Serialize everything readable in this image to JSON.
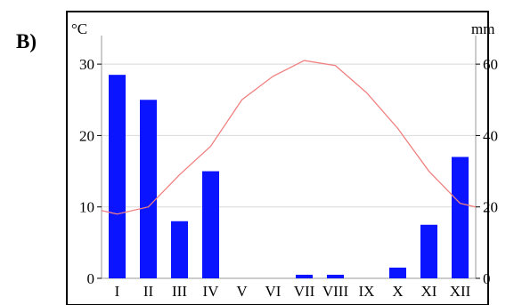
{
  "panel_label": "B)",
  "chart_data": {
    "type": "bar",
    "title": "",
    "left_unit": "°C",
    "right_unit": "mm",
    "categories": [
      "I",
      "II",
      "III",
      "IV",
      "V",
      "VI",
      "VII",
      "VIII",
      "IX",
      "X",
      "XI",
      "XII"
    ],
    "series": [
      {
        "type": "bar",
        "axis": "right",
        "color": "#0a14ff",
        "values": [
          57,
          50,
          16,
          30,
          0,
          0,
          1,
          1,
          0,
          3,
          15,
          34
        ]
      },
      {
        "type": "line",
        "axis": "left",
        "color": "#f08080",
        "values": [
          9,
          10,
          14.5,
          18.5,
          25,
          28.3,
          30.5,
          29.8,
          26,
          21,
          15,
          10.5
        ]
      }
    ],
    "left_axis": {
      "ylim": [
        0,
        34
      ],
      "ticks": [
        0,
        10,
        20,
        30
      ]
    },
    "right_axis": {
      "ylim": [
        0,
        68
      ],
      "ticks": [
        0,
        20,
        40,
        60
      ]
    },
    "grid": "horizontal"
  }
}
